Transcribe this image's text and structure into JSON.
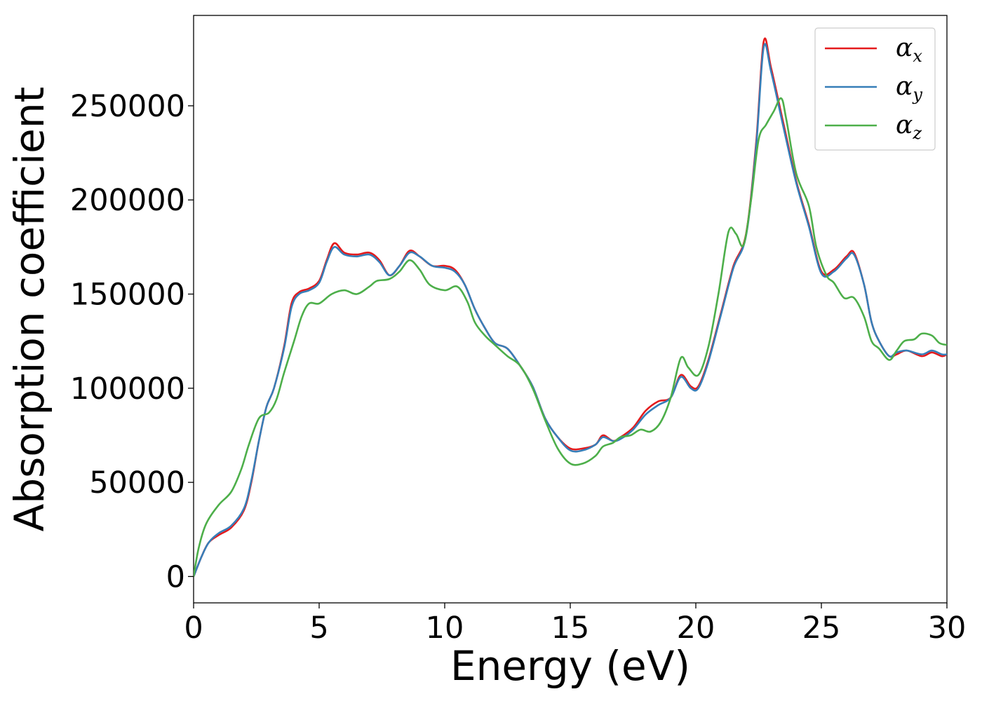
{
  "chart_data": {
    "type": "line",
    "xlabel": "Energy (eV)",
    "ylabel": "Absorption coefficient",
    "xlim": [
      0,
      30
    ],
    "ylim": [
      -14000,
      298000
    ],
    "x_ticks": [
      0,
      5,
      10,
      15,
      20,
      25,
      30
    ],
    "x_tick_labels": [
      "0",
      "5",
      "10",
      "15",
      "20",
      "25",
      "30"
    ],
    "y_ticks": [
      0,
      50000,
      100000,
      150000,
      200000,
      250000
    ],
    "y_tick_labels": [
      "0",
      "50000",
      "100000",
      "150000",
      "200000",
      "250000"
    ],
    "grid": false,
    "legend_position": "top-right",
    "series": [
      {
        "name": "α",
        "subscript": "x",
        "color": "#e41a1c",
        "points": [
          [
            0,
            0
          ],
          [
            0.3,
            10000
          ],
          [
            0.6,
            18000
          ],
          [
            1.0,
            22000
          ],
          [
            1.5,
            26000
          ],
          [
            2.0,
            35000
          ],
          [
            2.3,
            50000
          ],
          [
            2.6,
            72000
          ],
          [
            2.9,
            90000
          ],
          [
            3.2,
            100000
          ],
          [
            3.6,
            122000
          ],
          [
            3.9,
            145000
          ],
          [
            4.2,
            151000
          ],
          [
            4.6,
            153000
          ],
          [
            5.0,
            157000
          ],
          [
            5.3,
            168000
          ],
          [
            5.6,
            177000
          ],
          [
            6.0,
            172000
          ],
          [
            6.5,
            171000
          ],
          [
            7.0,
            172000
          ],
          [
            7.4,
            168000
          ],
          [
            7.8,
            160000
          ],
          [
            8.2,
            165000
          ],
          [
            8.6,
            173000
          ],
          [
            9.0,
            170000
          ],
          [
            9.5,
            165000
          ],
          [
            10.0,
            165000
          ],
          [
            10.4,
            163000
          ],
          [
            10.8,
            155000
          ],
          [
            11.2,
            142000
          ],
          [
            11.6,
            132000
          ],
          [
            12.0,
            124000
          ],
          [
            12.5,
            121000
          ],
          [
            13.0,
            112000
          ],
          [
            13.5,
            101000
          ],
          [
            14.0,
            84000
          ],
          [
            14.5,
            74000
          ],
          [
            15.0,
            68000
          ],
          [
            15.5,
            68000
          ],
          [
            16.0,
            70000
          ],
          [
            16.3,
            75000
          ],
          [
            16.7,
            72000
          ],
          [
            17.0,
            74000
          ],
          [
            17.5,
            79000
          ],
          [
            18.0,
            88000
          ],
          [
            18.5,
            93000
          ],
          [
            19.0,
            95000
          ],
          [
            19.4,
            107000
          ],
          [
            19.8,
            101000
          ],
          [
            20.1,
            101000
          ],
          [
            20.5,
            115000
          ],
          [
            21.0,
            140000
          ],
          [
            21.5,
            165000
          ],
          [
            22.0,
            182000
          ],
          [
            22.4,
            230000
          ],
          [
            22.7,
            284000
          ],
          [
            23.0,
            270000
          ],
          [
            23.5,
            240000
          ],
          [
            24.0,
            210000
          ],
          [
            24.5,
            187000
          ],
          [
            25.0,
            162000
          ],
          [
            25.5,
            163000
          ],
          [
            26.0,
            170000
          ],
          [
            26.3,
            172000
          ],
          [
            26.7,
            155000
          ],
          [
            27.0,
            135000
          ],
          [
            27.3,
            125000
          ],
          [
            27.7,
            117000
          ],
          [
            28.0,
            118000
          ],
          [
            28.4,
            120000
          ],
          [
            29.0,
            117000
          ],
          [
            29.4,
            119000
          ],
          [
            29.8,
            117000
          ],
          [
            30.0,
            118000
          ]
        ]
      },
      {
        "name": "α",
        "subscript": "y",
        "color": "#377eb8",
        "points": [
          [
            0,
            0
          ],
          [
            0.3,
            10000
          ],
          [
            0.6,
            18000
          ],
          [
            1.0,
            23000
          ],
          [
            1.5,
            27000
          ],
          [
            2.0,
            36000
          ],
          [
            2.3,
            51000
          ],
          [
            2.6,
            72000
          ],
          [
            2.9,
            90000
          ],
          [
            3.2,
            100000
          ],
          [
            3.6,
            121000
          ],
          [
            3.9,
            143000
          ],
          [
            4.2,
            150000
          ],
          [
            4.6,
            152000
          ],
          [
            5.0,
            156000
          ],
          [
            5.3,
            167000
          ],
          [
            5.6,
            175000
          ],
          [
            6.0,
            171000
          ],
          [
            6.5,
            170000
          ],
          [
            7.0,
            171000
          ],
          [
            7.4,
            167000
          ],
          [
            7.8,
            160000
          ],
          [
            8.2,
            165000
          ],
          [
            8.6,
            172000
          ],
          [
            9.0,
            170000
          ],
          [
            9.5,
            165000
          ],
          [
            10.0,
            164000
          ],
          [
            10.4,
            162000
          ],
          [
            10.8,
            155000
          ],
          [
            11.2,
            142000
          ],
          [
            11.6,
            132000
          ],
          [
            12.0,
            124000
          ],
          [
            12.5,
            121000
          ],
          [
            13.0,
            112000
          ],
          [
            13.5,
            101000
          ],
          [
            14.0,
            84000
          ],
          [
            14.5,
            74000
          ],
          [
            15.0,
            67000
          ],
          [
            15.5,
            67000
          ],
          [
            16.0,
            70000
          ],
          [
            16.3,
            74000
          ],
          [
            16.7,
            72000
          ],
          [
            17.0,
            73000
          ],
          [
            17.5,
            78000
          ],
          [
            18.0,
            86000
          ],
          [
            18.5,
            91000
          ],
          [
            19.0,
            95000
          ],
          [
            19.4,
            106000
          ],
          [
            19.8,
            100000
          ],
          [
            20.1,
            100000
          ],
          [
            20.5,
            114000
          ],
          [
            21.0,
            139000
          ],
          [
            21.5,
            164000
          ],
          [
            22.0,
            181000
          ],
          [
            22.4,
            228000
          ],
          [
            22.7,
            281000
          ],
          [
            23.0,
            268000
          ],
          [
            23.5,
            238000
          ],
          [
            24.0,
            209000
          ],
          [
            24.5,
            186000
          ],
          [
            25.0,
            161000
          ],
          [
            25.5,
            162000
          ],
          [
            26.0,
            169000
          ],
          [
            26.3,
            171000
          ],
          [
            26.7,
            155000
          ],
          [
            27.0,
            135000
          ],
          [
            27.3,
            125000
          ],
          [
            27.7,
            117000
          ],
          [
            28.0,
            119000
          ],
          [
            28.4,
            120000
          ],
          [
            29.0,
            118000
          ],
          [
            29.4,
            120000
          ],
          [
            29.8,
            118000
          ],
          [
            30.0,
            118000
          ]
        ]
      },
      {
        "name": "α",
        "subscript": "z",
        "color": "#4daf4a",
        "points": [
          [
            0,
            0
          ],
          [
            0.2,
            15000
          ],
          [
            0.5,
            28000
          ],
          [
            1.0,
            38000
          ],
          [
            1.5,
            45000
          ],
          [
            1.9,
            57000
          ],
          [
            2.2,
            70000
          ],
          [
            2.6,
            84000
          ],
          [
            3.0,
            87000
          ],
          [
            3.3,
            94000
          ],
          [
            3.6,
            108000
          ],
          [
            4.0,
            125000
          ],
          [
            4.3,
            138000
          ],
          [
            4.6,
            145000
          ],
          [
            5.0,
            145000
          ],
          [
            5.5,
            150000
          ],
          [
            6.0,
            152000
          ],
          [
            6.5,
            150000
          ],
          [
            7.0,
            154000
          ],
          [
            7.3,
            157000
          ],
          [
            7.8,
            158000
          ],
          [
            8.2,
            162000
          ],
          [
            8.6,
            168000
          ],
          [
            9.0,
            163000
          ],
          [
            9.4,
            155000
          ],
          [
            10.0,
            152000
          ],
          [
            10.5,
            154000
          ],
          [
            10.9,
            146000
          ],
          [
            11.2,
            135000
          ],
          [
            11.6,
            128000
          ],
          [
            12.0,
            123000
          ],
          [
            12.5,
            117000
          ],
          [
            13.0,
            112000
          ],
          [
            13.5,
            100000
          ],
          [
            14.0,
            83000
          ],
          [
            14.5,
            68000
          ],
          [
            15.0,
            60000
          ],
          [
            15.5,
            60000
          ],
          [
            16.0,
            64000
          ],
          [
            16.3,
            69000
          ],
          [
            16.7,
            71000
          ],
          [
            17.0,
            74000
          ],
          [
            17.4,
            75000
          ],
          [
            17.8,
            78000
          ],
          [
            18.2,
            77000
          ],
          [
            18.6,
            82000
          ],
          [
            19.0,
            95000
          ],
          [
            19.4,
            116000
          ],
          [
            19.7,
            111000
          ],
          [
            20.1,
            107000
          ],
          [
            20.5,
            122000
          ],
          [
            20.9,
            150000
          ],
          [
            21.3,
            183000
          ],
          [
            21.6,
            182000
          ],
          [
            21.9,
            176000
          ],
          [
            22.2,
            200000
          ],
          [
            22.5,
            232000
          ],
          [
            22.8,
            240000
          ],
          [
            23.1,
            247000
          ],
          [
            23.4,
            254000
          ],
          [
            23.6,
            243000
          ],
          [
            24.0,
            214000
          ],
          [
            24.5,
            197000
          ],
          [
            24.8,
            175000
          ],
          [
            25.2,
            160000
          ],
          [
            25.5,
            156000
          ],
          [
            25.9,
            148000
          ],
          [
            26.3,
            148000
          ],
          [
            26.7,
            138000
          ],
          [
            27.0,
            125000
          ],
          [
            27.3,
            121000
          ],
          [
            27.7,
            115000
          ],
          [
            28.0,
            120000
          ],
          [
            28.3,
            125000
          ],
          [
            28.7,
            126000
          ],
          [
            29.0,
            129000
          ],
          [
            29.4,
            128000
          ],
          [
            29.7,
            124000
          ],
          [
            30.0,
            123000
          ]
        ]
      }
    ]
  }
}
